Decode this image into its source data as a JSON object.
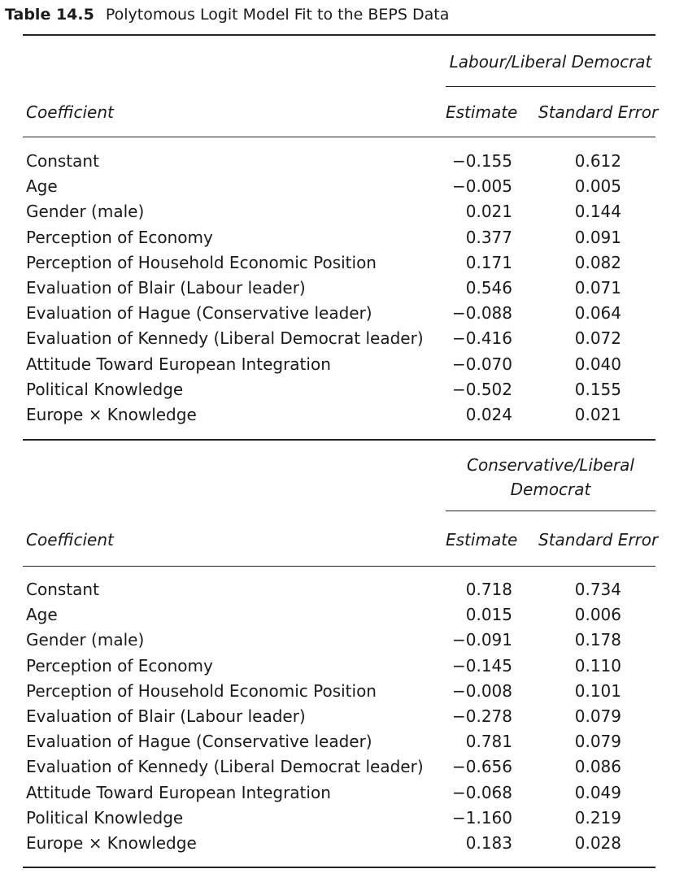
{
  "caption": {
    "number": "Table 14.5",
    "title": "Polytomous Logit Model Fit to the BEPS Data"
  },
  "panels": [
    {
      "group_label": "Labour/Liberal Democrat",
      "header": {
        "coefficient": "Coefficient",
        "estimate": "Estimate",
        "std_error": "Standard Error"
      },
      "rows": [
        {
          "label": "Constant",
          "estimate": "−0.155",
          "std_error": "0.612"
        },
        {
          "label": "Age",
          "estimate": "−0.005",
          "std_error": "0.005"
        },
        {
          "label": "Gender (male)",
          "estimate": "0.021",
          "std_error": "0.144"
        },
        {
          "label": "Perception of Economy",
          "estimate": "0.377",
          "std_error": "0.091"
        },
        {
          "label": "Perception of Household Economic Position",
          "estimate": "0.171",
          "std_error": "0.082"
        },
        {
          "label": "Evaluation of Blair (Labour leader)",
          "estimate": "0.546",
          "std_error": "0.071"
        },
        {
          "label": "Evaluation of Hague (Conservative leader)",
          "estimate": "−0.088",
          "std_error": "0.064"
        },
        {
          "label": "Evaluation of Kennedy (Liberal Democrat leader)",
          "estimate": "−0.416",
          "std_error": "0.072"
        },
        {
          "label": "Attitude Toward European Integration",
          "estimate": "−0.070",
          "std_error": "0.040"
        },
        {
          "label": "Political Knowledge",
          "estimate": "−0.502",
          "std_error": "0.155"
        },
        {
          "label": "Europe × Knowledge",
          "estimate": "0.024",
          "std_error": "0.021"
        }
      ]
    },
    {
      "group_label_line1": "Conservative/Liberal",
      "group_label_line2": "Democrat",
      "header": {
        "coefficient": "Coefficient",
        "estimate": "Estimate",
        "std_error": "Standard Error"
      },
      "rows": [
        {
          "label": "Constant",
          "estimate": "0.718",
          "std_error": "0.734"
        },
        {
          "label": "Age",
          "estimate": "0.015",
          "std_error": "0.006"
        },
        {
          "label": "Gender (male)",
          "estimate": "−0.091",
          "std_error": "0.178"
        },
        {
          "label": "Perception of Economy",
          "estimate": "−0.145",
          "std_error": "0.110"
        },
        {
          "label": "Perception of Household Economic Position",
          "estimate": "−0.008",
          "std_error": "0.101"
        },
        {
          "label": "Evaluation of Blair (Labour leader)",
          "estimate": "−0.278",
          "std_error": "0.079"
        },
        {
          "label": "Evaluation of Hague (Conservative leader)",
          "estimate": "0.781",
          "std_error": "0.079"
        },
        {
          "label": "Evaluation of Kennedy (Liberal Democrat leader)",
          "estimate": "−0.656",
          "std_error": "0.086"
        },
        {
          "label": "Attitude Toward European Integration",
          "estimate": "−0.068",
          "std_error": "0.049"
        },
        {
          "label": "Political Knowledge",
          "estimate": "−1.160",
          "std_error": "0.219"
        },
        {
          "label": "Europe × Knowledge",
          "estimate": "0.183",
          "std_error": "0.028"
        }
      ]
    }
  ]
}
